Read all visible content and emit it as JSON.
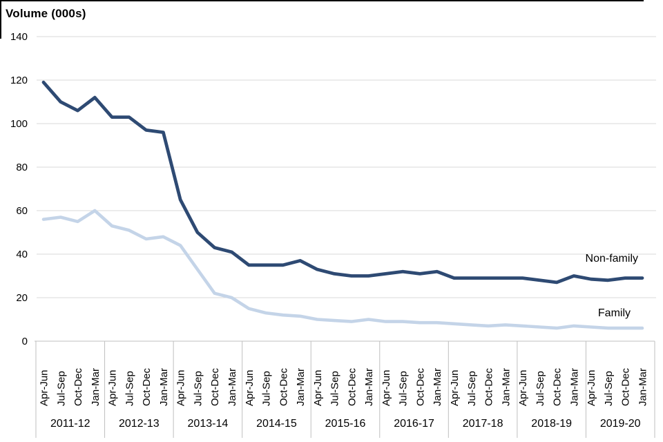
{
  "title": "Volume (000s)",
  "colors": {
    "non_family_line": "#2E4A73",
    "family_line": "#C4D4E8",
    "gridline": "#D9D9D9",
    "axis_and_separators": "#BFBFBF",
    "text": "#000000",
    "border": "#000000",
    "background": "#FFFFFF"
  },
  "chart_data": {
    "type": "line",
    "title": "Volume (000s)",
    "ylabel": "Volume (000s)",
    "xlabel": "",
    "ylim": [
      0,
      140
    ],
    "yticks": [
      0,
      20,
      40,
      60,
      80,
      100,
      120,
      140
    ],
    "grid": "horizontal-on",
    "legend_position": "end-of-line-labels",
    "x": {
      "years": [
        "2011-12",
        "2012-13",
        "2013-14",
        "2014-15",
        "2015-16",
        "2016-17",
        "2017-18",
        "2018-19",
        "2019-20"
      ],
      "quarter_labels": [
        "Apr-Jun",
        "Jul-Sep",
        "Oct-Dec",
        "Jan-Mar"
      ]
    },
    "series": [
      {
        "name": "Non-family",
        "color": "#2E4A73",
        "values": [
          119,
          110,
          106,
          112,
          103,
          103,
          97,
          96,
          65,
          50,
          43,
          41,
          35,
          35,
          35,
          37,
          33,
          31,
          30,
          30,
          31,
          32,
          31,
          32,
          29,
          29,
          29,
          29,
          29,
          28,
          27,
          30,
          28.5,
          28,
          29,
          29
        ]
      },
      {
        "name": "Family",
        "color": "#C4D4E8",
        "values": [
          56,
          57,
          55,
          60,
          53,
          51,
          47,
          48,
          44,
          33,
          22,
          20,
          15,
          13,
          12,
          11.5,
          10,
          9.5,
          9,
          10,
          9,
          9,
          8.5,
          8.5,
          8,
          7.5,
          7,
          7.5,
          7,
          6.5,
          6,
          7,
          6.5,
          6,
          6,
          6
        ]
      }
    ]
  }
}
